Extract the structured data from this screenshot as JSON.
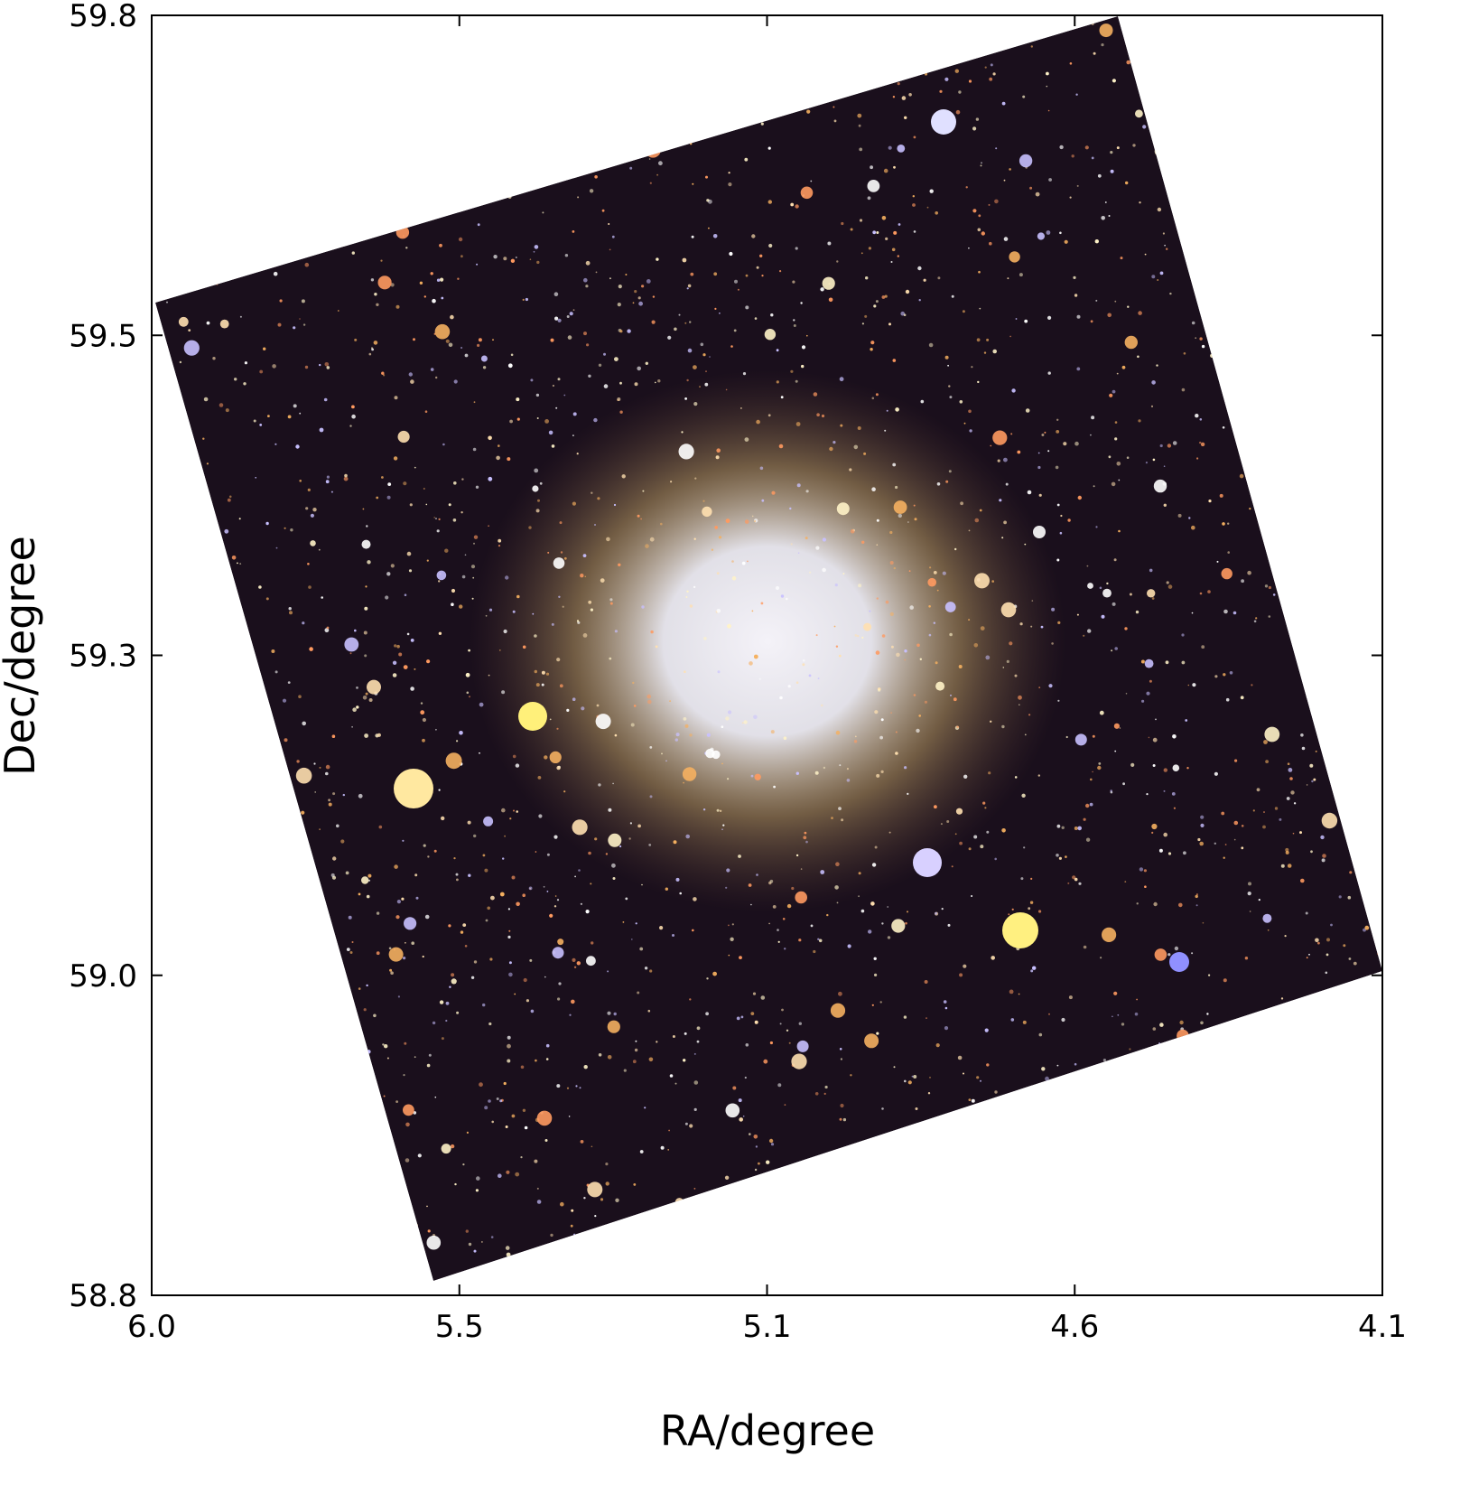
{
  "chart_data": {
    "type": "image",
    "xlabel": "RA/degree",
    "ylabel": "Dec/degree",
    "xlim": [
      6.0,
      4.1
    ],
    "xticks": [
      {
        "value": 6.0,
        "label": "6.0"
      },
      {
        "value": 5.525,
        "label": "5.5"
      },
      {
        "value": 5.05,
        "label": "5.1"
      },
      {
        "value": 4.575,
        "label": "4.6"
      },
      {
        "value": 4.1,
        "label": "4.1"
      }
    ],
    "ylim": [
      58.8,
      59.8
    ],
    "yticks": [
      {
        "value": 58.8,
        "label": "58.8"
      },
      {
        "value": 59.05,
        "label": "59.0"
      },
      {
        "value": 59.3,
        "label": "59.3"
      },
      {
        "value": 59.55,
        "label": "59.5"
      },
      {
        "value": 59.8,
        "label": "59.8"
      }
    ]
  }
}
